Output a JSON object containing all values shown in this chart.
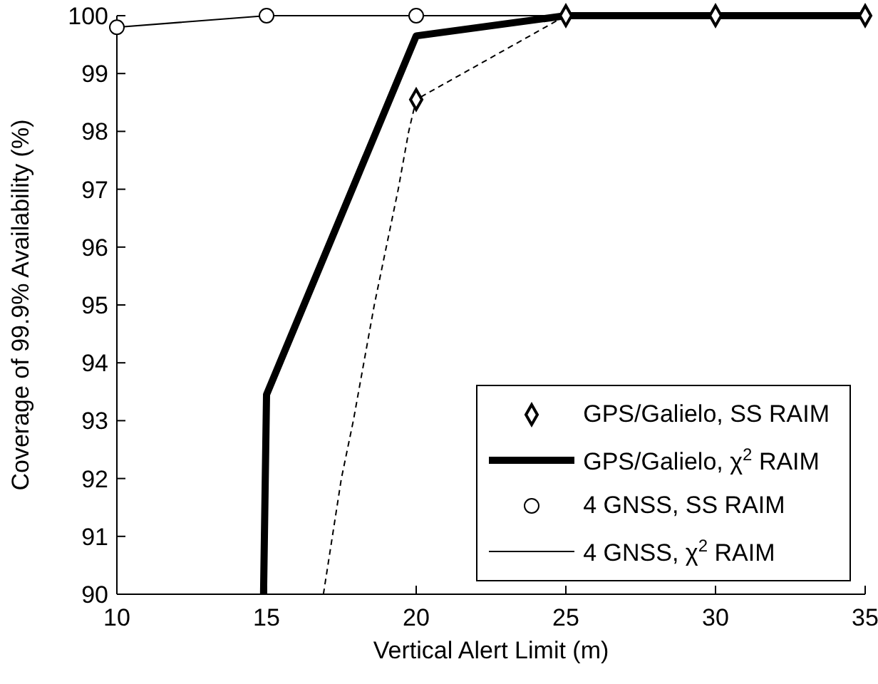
{
  "chart_data": {
    "type": "line",
    "xlabel": "Vertical Alert Limit (m)",
    "ylabel": "Coverage of 99.9% Availability (%)",
    "xlim": [
      10,
      35
    ],
    "xticks": [
      10,
      15,
      20,
      25,
      30,
      35
    ],
    "ylim": [
      90,
      100
    ],
    "yticks": [
      90,
      91,
      92,
      93,
      94,
      95,
      96,
      97,
      98,
      99,
      100
    ],
    "grid": false,
    "legend": "bottom right",
    "series": [
      {
        "name": "GPS/Galielo, SS RAIM",
        "type": "scatter",
        "marker": "diamond",
        "color": "#000000",
        "x": [
          20,
          25,
          30,
          35
        ],
        "values": [
          98.55,
          100,
          100,
          100
        ]
      },
      {
        "name": "GPS/Galielo, χ$^{2}$ RAIM",
        "marker": "none",
        "line_style": "solid",
        "color": "#000000",
        "x": [
          14.9,
          15,
          20,
          25,
          30,
          35
        ],
        "values": [
          90,
          93.45,
          99.65,
          100,
          100,
          100
        ]
      },
      {
        "name": "4 GNSS, SS RAIM",
        "type": "scatter",
        "marker": "circle",
        "color": "#000000",
        "x": [
          10,
          15,
          20
        ],
        "values": [
          99.8,
          100,
          100
        ]
      },
      {
        "name": "4 GNSS, χ$^{2}$ RAIM",
        "marker": "none",
        "line_style": "solid",
        "color": "#000000",
        "x": [
          10,
          15,
          20,
          25,
          30,
          35
        ],
        "values": [
          99.8,
          100,
          100,
          100,
          100,
          100
        ]
      },
      {
        "marker": "none",
        "line_style": "dashed",
        "color": "#000000",
        "x": [
          16.9,
          17.2,
          17.5,
          17.9,
          18.6,
          19.4,
          19.75,
          20,
          25
        ],
        "values": [
          90,
          91,
          92,
          93,
          95,
          97,
          98,
          98.55,
          100
        ]
      }
    ]
  }
}
